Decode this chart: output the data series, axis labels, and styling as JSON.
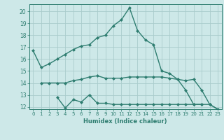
{
  "title": "",
  "xlabel": "Humidex (Indice chaleur)",
  "x": [
    0,
    1,
    2,
    3,
    4,
    5,
    6,
    7,
    8,
    9,
    10,
    11,
    12,
    13,
    14,
    15,
    16,
    17,
    18,
    19,
    20,
    21,
    22,
    23
  ],
  "line1": [
    16.7,
    15.3,
    15.6,
    16.0,
    16.4,
    16.8,
    17.1,
    17.2,
    17.8,
    18.0,
    18.8,
    19.3,
    20.3,
    18.4,
    17.6,
    17.2,
    15.0,
    14.8,
    14.3,
    13.4,
    12.2,
    12.2,
    null,
    null
  ],
  "line2": [
    null,
    14.0,
    14.0,
    14.0,
    14.0,
    14.2,
    14.3,
    14.5,
    14.6,
    14.4,
    14.4,
    14.4,
    14.5,
    14.5,
    14.5,
    14.5,
    14.5,
    14.4,
    14.3,
    14.2,
    14.3,
    13.4,
    12.2,
    11.8
  ],
  "line3": [
    null,
    null,
    null,
    12.8,
    11.9,
    12.6,
    12.4,
    13.0,
    12.3,
    12.3,
    12.2,
    12.2,
    12.2,
    12.2,
    12.2,
    12.2,
    12.2,
    12.2,
    12.2,
    12.2,
    12.2,
    12.2,
    12.2,
    11.8
  ],
  "line_color": "#2e7d70",
  "bg_color": "#cde8e8",
  "grid_color": "#aacccc",
  "ylim": [
    11.8,
    20.6
  ],
  "yticks": [
    12,
    13,
    14,
    15,
    16,
    17,
    18,
    19,
    20
  ],
  "xticks": [
    0,
    1,
    2,
    3,
    4,
    5,
    6,
    7,
    8,
    9,
    10,
    11,
    12,
    13,
    14,
    15,
    16,
    17,
    18,
    19,
    20,
    21,
    22,
    23
  ],
  "marker": "D",
  "marker_size": 2,
  "line_width": 1.0
}
